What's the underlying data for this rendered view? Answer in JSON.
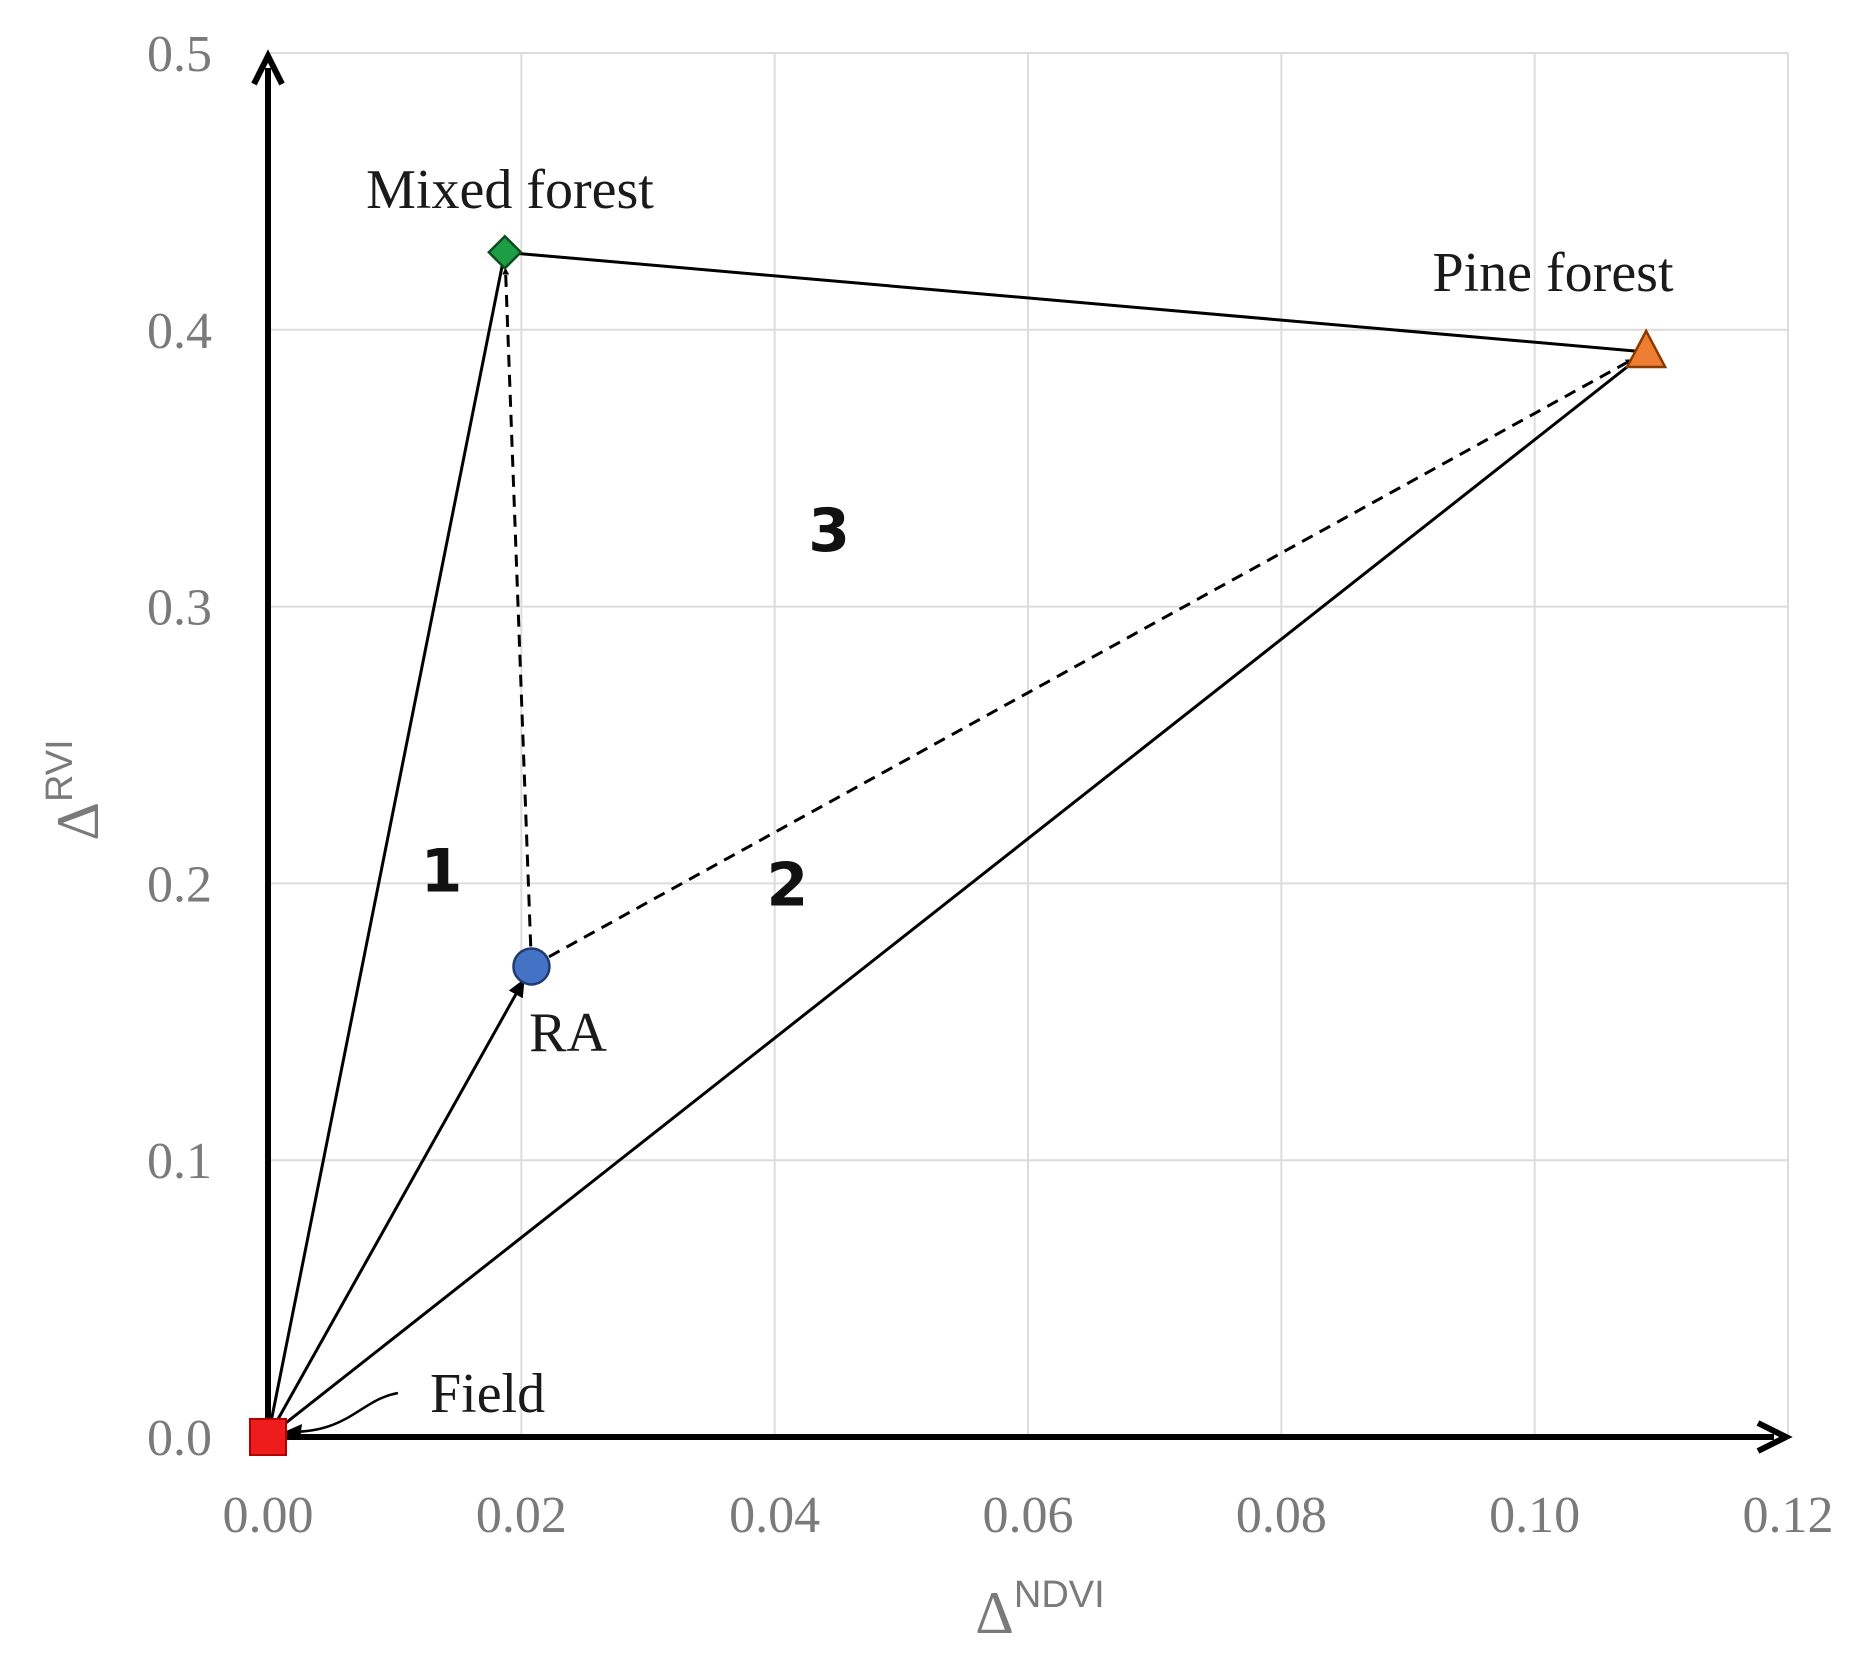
{
  "chart_data": {
    "type": "scatter",
    "title": "",
    "xlabel": {
      "base": "Δ",
      "sup": "NDVI"
    },
    "ylabel": {
      "base": "Δ",
      "sup": "RVI"
    },
    "xlim": [
      0,
      0.12
    ],
    "ylim": [
      0,
      0.5
    ],
    "xticks": [
      "0.00",
      "0.02",
      "0.04",
      "0.06",
      "0.08",
      "0.10",
      "0.12"
    ],
    "yticks": [
      "0.0",
      "0.1",
      "0.2",
      "0.3",
      "0.4",
      "0.5"
    ],
    "grid": true,
    "points": [
      {
        "id": "field",
        "label": "Field",
        "x": 0.0,
        "y": 0.0,
        "marker": "square",
        "color": "#ee1c1c"
      },
      {
        "id": "ra",
        "label": "RA",
        "x": 0.0208,
        "y": 0.17,
        "marker": "circle",
        "color": "#4472c4"
      },
      {
        "id": "mixed",
        "label": "Mixed forest",
        "x": 0.0187,
        "y": 0.428,
        "marker": "diamond",
        "color": "#1e9e44"
      },
      {
        "id": "pine",
        "label": "Pine forest",
        "x": 0.1088,
        "y": 0.392,
        "marker": "triangle",
        "color": "#ed7d31"
      }
    ],
    "solid_lines": [
      [
        "field",
        "mixed"
      ],
      [
        "mixed",
        "pine"
      ],
      [
        "field",
        "pine"
      ],
      [
        "field",
        "ra"
      ]
    ],
    "dashed_arrows": [
      [
        "ra",
        "mixed"
      ],
      [
        "ra",
        "pine"
      ]
    ],
    "region_labels": [
      {
        "text": "1",
        "x": 0.0137,
        "y": 0.197
      },
      {
        "text": "2",
        "x": 0.041,
        "y": 0.192
      },
      {
        "text": "3",
        "x": 0.0443,
        "y": 0.32
      }
    ]
  }
}
